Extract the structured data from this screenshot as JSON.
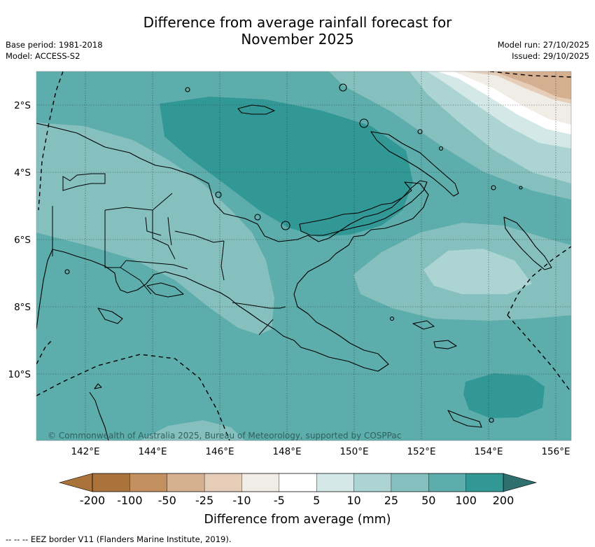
{
  "title_line1": "Difference from average rainfall forecast for",
  "title_line2": "November 2025",
  "base_period": "Base period: 1981-2018",
  "model": "Model: ACCESS-S2",
  "model_run": "Model run: 27/10/2025",
  "issued": "Issued: 29/10/2025",
  "lat_labels": [
    "2°S",
    "4°S",
    "6°S",
    "8°S",
    "10°S"
  ],
  "lon_labels": [
    "142°E",
    "144°E",
    "146°E",
    "148°E",
    "150°E",
    "152°E",
    "154°E",
    "156°E"
  ],
  "copyright": "© Commonwealth of Australia 2025, Bureau of Meteorology, supported by COSPPac",
  "colorbar": {
    "labels": [
      "-200",
      "-100",
      "-50",
      "-25",
      "-10",
      "-5",
      "5",
      "10",
      "25",
      "50",
      "100",
      "200"
    ],
    "colors": [
      "#a9733b",
      "#c49060",
      "#d4b090",
      "#e5cdb7",
      "#f0ece6",
      "#ffffff",
      "#d3e8e7",
      "#abd4d3",
      "#85c0bf",
      "#5cadab",
      "#329896",
      "#2f6f6d"
    ],
    "title": "Difference from average (mm)"
  },
  "footnote": "-- -- -- EEZ border V11 (Flanders Marine Institute, 2019)."
}
